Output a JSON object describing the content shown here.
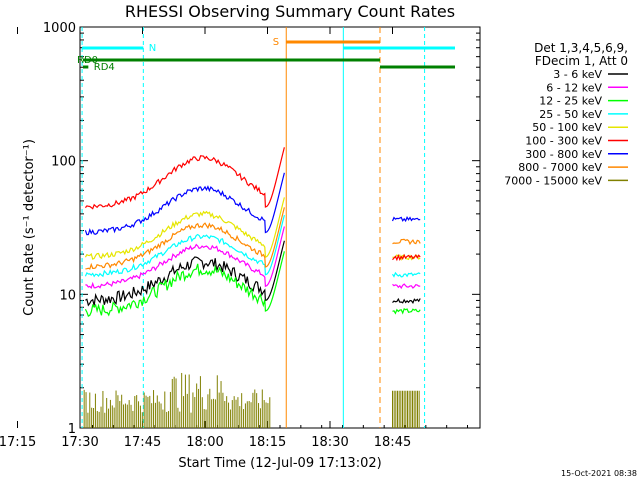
{
  "chart_data": {
    "type": "line",
    "title": "RHESSI Observing Summary Count Rates",
    "xlabel": "Start Time (12-Jul-09 17:13:02)",
    "ylabel": "Count Rate (s⁻¹ detector⁻¹)",
    "yscale": "log",
    "ylim": [
      1,
      1000
    ],
    "xlim_minutes": [
      17.0,
      113.0
    ],
    "x_ticks": [
      {
        "label": "17:15",
        "minute": 2
      },
      {
        "label": "17:30",
        "minute": 17
      },
      {
        "label": "17:45",
        "minute": 32
      },
      {
        "label": "18:00",
        "minute": 47
      },
      {
        "label": "18:15",
        "minute": 62
      },
      {
        "label": "18:30",
        "minute": 77
      },
      {
        "label": "18:45",
        "minute": 92
      }
    ],
    "y_ticks": [
      {
        "label": "1",
        "value": 1
      },
      {
        "label": "10",
        "value": 10
      },
      {
        "label": "100",
        "value": 100
      },
      {
        "label": "1000",
        "value": 1000
      }
    ],
    "legend_header": [
      "Det 1,3,4,5,6,9,",
      "FDecim 1, Att 0"
    ],
    "legend_placement": "right",
    "footer_date": "15-Oct-2021 08:38",
    "series": [
      {
        "name": "3 - 6 keV",
        "color": "#000000",
        "base": 9.0,
        "peak": 17.5
      },
      {
        "name": "6 - 12 keV",
        "color": "#ff00ff",
        "base": 11.5,
        "peak": 23
      },
      {
        "name": "12 - 25 keV",
        "color": "#00ff00",
        "base": 7.5,
        "peak": 15.5
      },
      {
        "name": "25 - 50 keV",
        "color": "#00ffff",
        "base": 14,
        "peak": 27
      },
      {
        "name": "50 - 100 keV",
        "color": "#e6e600",
        "base": 19,
        "peak": 40
      },
      {
        "name": "100 - 300 keV",
        "color": "#ff0000",
        "base": 45,
        "peak": 105
      },
      {
        "name": "300 - 800 keV",
        "color": "#0000ff",
        "base": 29,
        "peak": 62
      },
      {
        "name": "800 - 7000 keV",
        "color": "#ff8800",
        "base": 16,
        "peak": 33
      },
      {
        "name": "7000 - 15000 keV",
        "color": "#808000",
        "base": 1.3,
        "peak": 2.6
      }
    ],
    "flag_labels": [
      {
        "text": "N",
        "color": "#00ffff"
      },
      {
        "text": "S",
        "color": "#ff8800"
      },
      {
        "text": "RD0",
        "color": "#008000"
      },
      {
        "text": "RD4",
        "color": "#008000"
      }
    ]
  }
}
